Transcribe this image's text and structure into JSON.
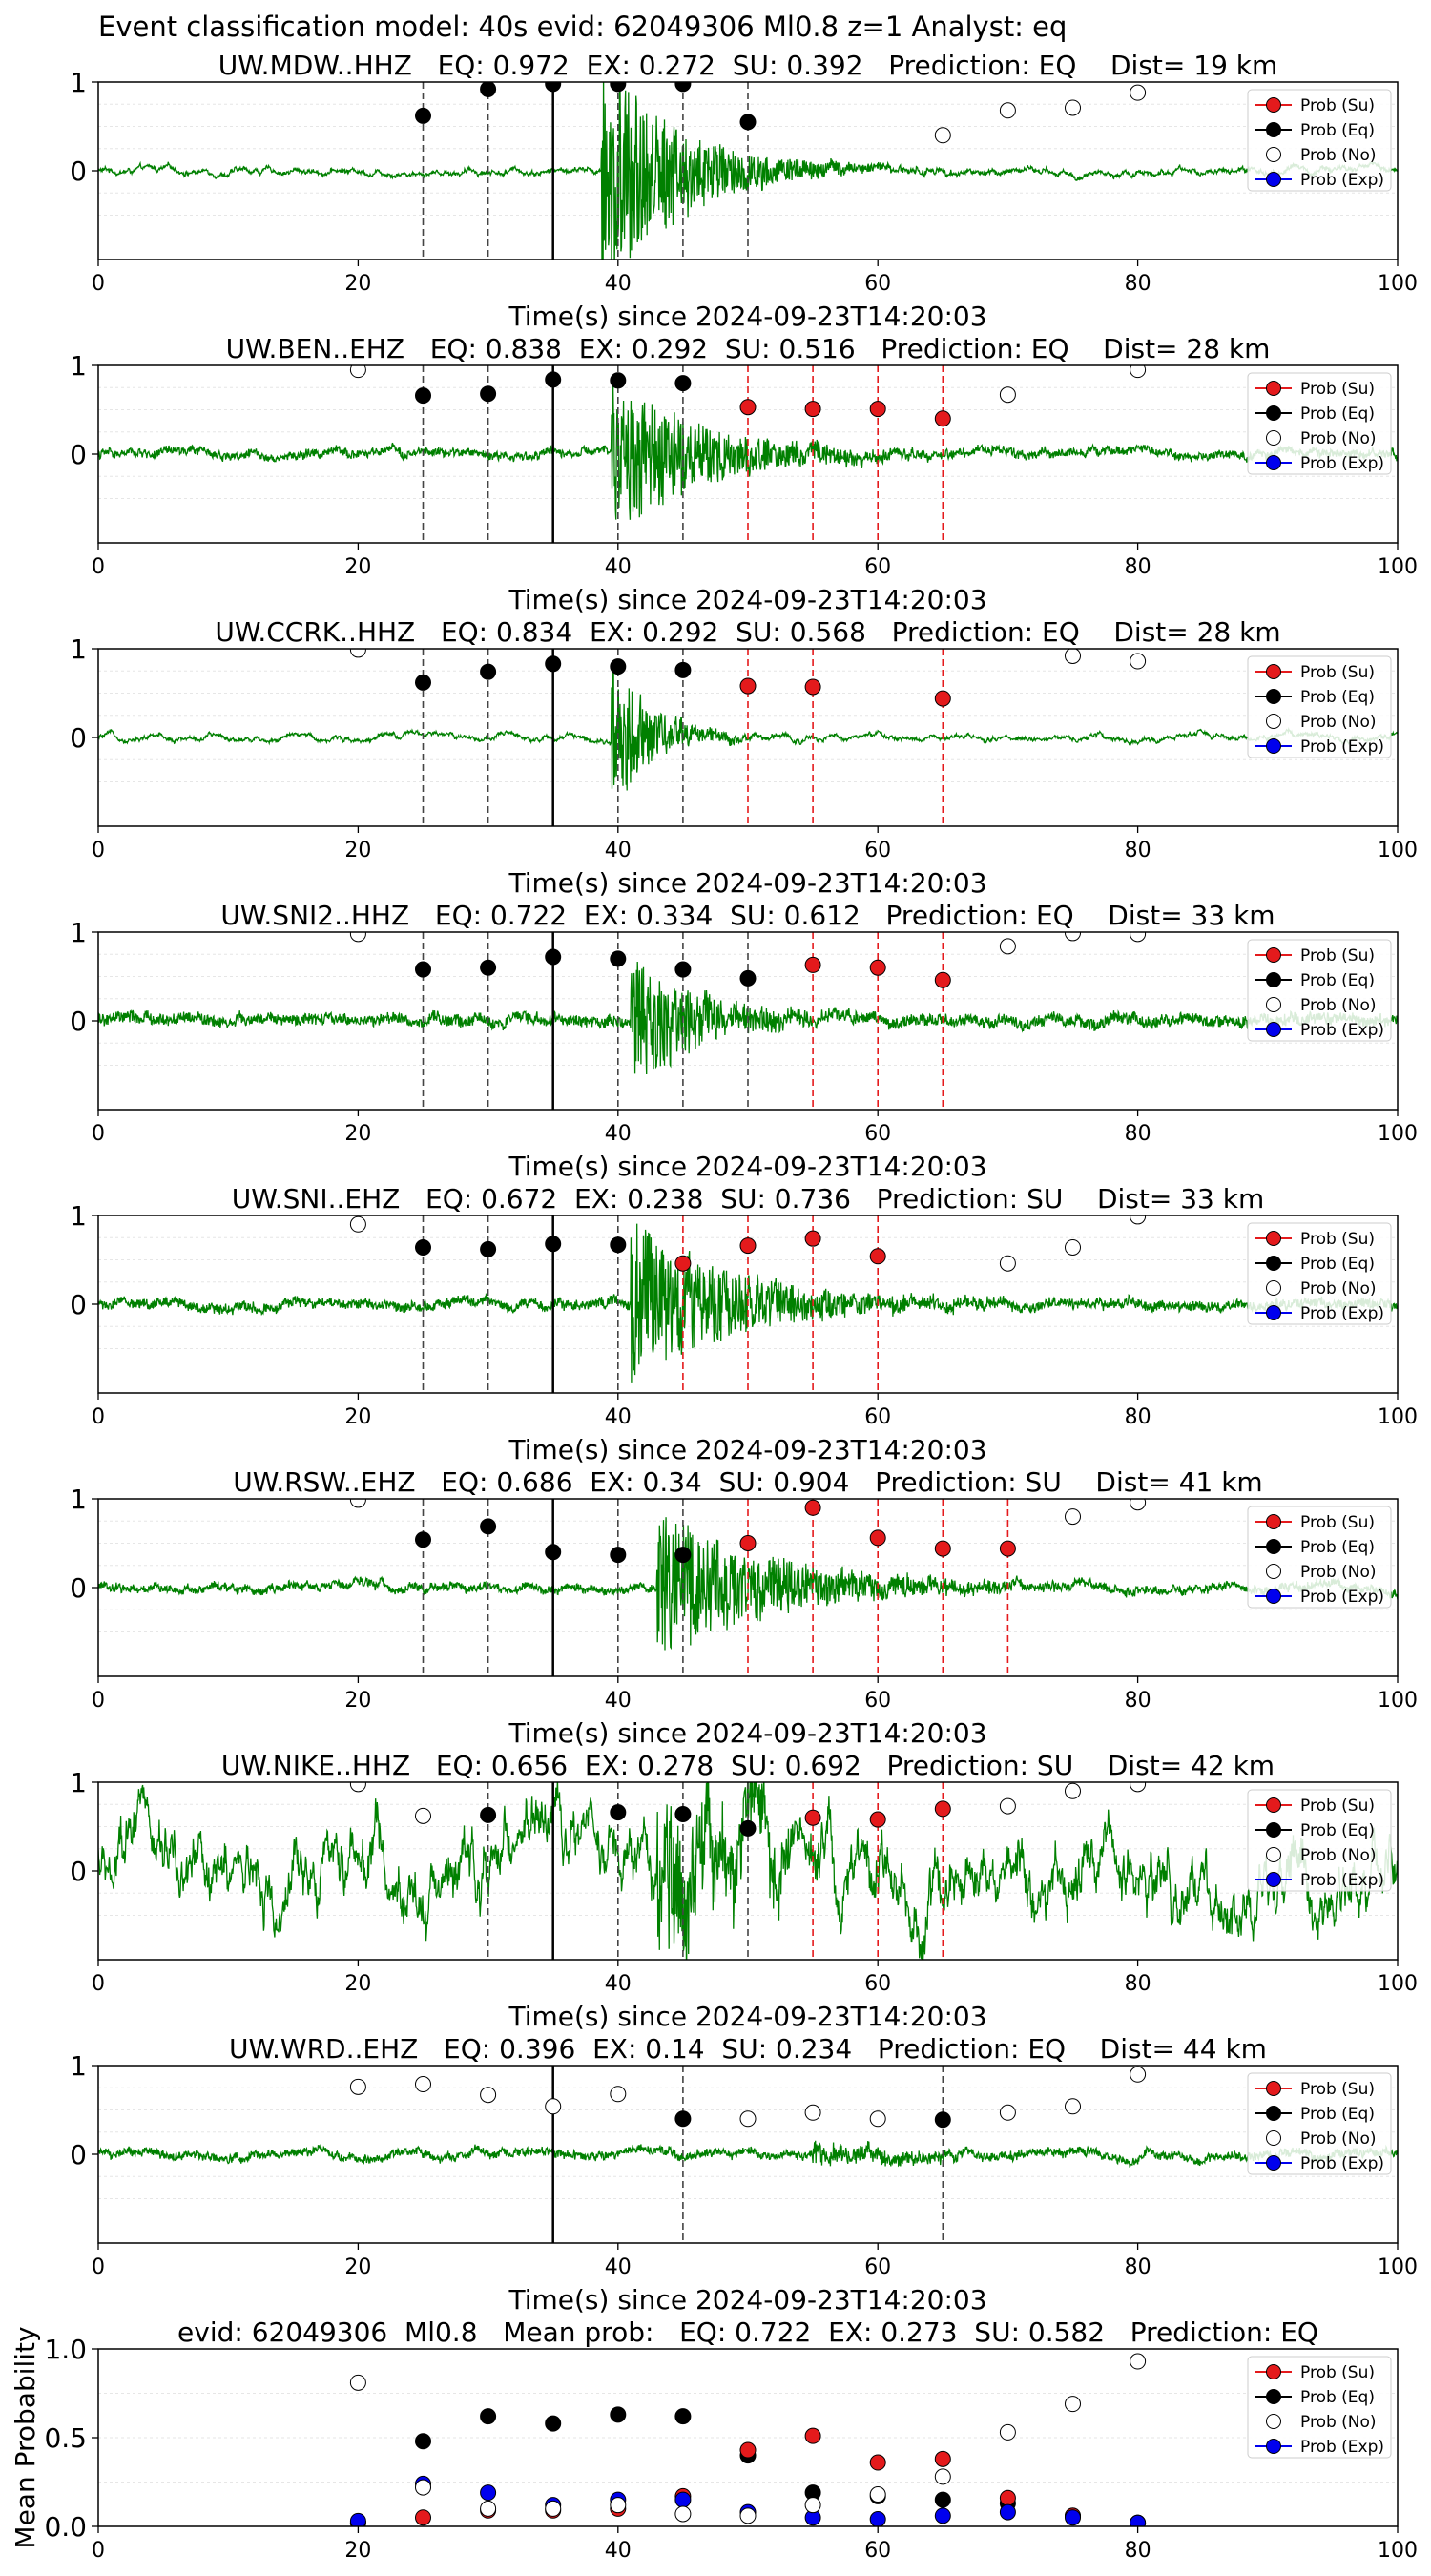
{
  "figure": {
    "suptitle": "Event classification model: 40s evid: 62049306 Ml0.8 z=1 Analyst: eq",
    "colors": {
      "wave": "#008000",
      "su": "#e41a1c",
      "eq": "#000000",
      "no": "#ffffff",
      "exp": "#0000ee",
      "eq_line": "#444444",
      "su_line": "#e41a1c"
    }
  },
  "legend": [
    "Prob (Su)",
    "Prob (Eq)",
    "Prob (No)",
    "Prob (Exp)"
  ],
  "chart_data": [
    {
      "type": "line+scatter",
      "title": "UW.MDW..HHZ   EQ: 0.972  EX: 0.272  SU: 0.392   Prediction: EQ    Dist= 19 km",
      "xlabel": "Time(s) since 2024-09-23T14:20:03",
      "xlim": [
        0,
        100
      ],
      "ylim": [
        -1,
        1
      ],
      "xticks": [
        "0",
        "20",
        "40",
        "60",
        "80",
        "100"
      ],
      "yticks": [
        "0",
        "1"
      ],
      "wave": {
        "noise": 0.015,
        "burst_start": 38.7,
        "burst_amp": 1.4,
        "burst_decay": 6
      },
      "arrival": 35,
      "eq_lines": [
        25,
        30,
        40,
        45,
        50
      ],
      "su_lines": [],
      "series": [
        {
          "name": "Prob (Eq)",
          "points": [
            [
              25,
              0.62
            ],
            [
              30,
              0.92
            ],
            [
              35,
              0.98
            ],
            [
              40,
              0.98
            ],
            [
              45,
              0.98
            ],
            [
              50,
              0.55
            ]
          ]
        },
        {
          "name": "Prob (No)",
          "points": [
            [
              65,
              0.4
            ],
            [
              70,
              0.68
            ],
            [
              75,
              0.71
            ],
            [
              80,
              0.88
            ]
          ]
        },
        {
          "name": "Prob (Su)",
          "points": []
        },
        {
          "name": "Prob (Exp)",
          "points": []
        }
      ]
    },
    {
      "type": "line+scatter",
      "title": "UW.BEN..EHZ   EQ: 0.838  EX: 0.292  SU: 0.516   Prediction: EQ    Dist= 28 km",
      "xlabel": "Time(s) since 2024-09-23T14:20:03",
      "xlim": [
        0,
        100
      ],
      "ylim": [
        -1,
        1
      ],
      "xticks": [
        "0",
        "20",
        "40",
        "60",
        "80",
        "100"
      ],
      "yticks": [
        "0",
        "1"
      ],
      "wave": {
        "noise": 0.04,
        "burst_start": 39.5,
        "burst_amp": 0.95,
        "burst_decay": 7
      },
      "arrival": 35,
      "eq_lines": [
        25,
        30,
        40,
        45
      ],
      "su_lines": [
        50,
        55,
        60,
        65
      ],
      "series": [
        {
          "name": "Prob (Eq)",
          "points": [
            [
              25,
              0.66
            ],
            [
              30,
              0.68
            ],
            [
              35,
              0.84
            ],
            [
              40,
              0.83
            ],
            [
              45,
              0.8
            ]
          ]
        },
        {
          "name": "Prob (Su)",
          "points": [
            [
              50,
              0.53
            ],
            [
              55,
              0.51
            ],
            [
              60,
              0.51
            ],
            [
              65,
              0.4
            ]
          ]
        },
        {
          "name": "Prob (No)",
          "points": [
            [
              20,
              0.95
            ],
            [
              70,
              0.67
            ],
            [
              80,
              0.95
            ]
          ]
        },
        {
          "name": "Prob (Exp)",
          "points": []
        }
      ]
    },
    {
      "type": "line+scatter",
      "title": "UW.CCRK..HHZ   EQ: 0.834  EX: 0.292  SU: 0.568   Prediction: EQ    Dist= 28 km",
      "xlabel": "Time(s) since 2024-09-23T14:20:03",
      "xlim": [
        0,
        100
      ],
      "ylim": [
        -1,
        1
      ],
      "xticks": [
        "0",
        "20",
        "40",
        "60",
        "80",
        "100"
      ],
      "yticks": [
        "0",
        "1"
      ],
      "wave": {
        "noise": 0.012,
        "burst_start": 39.5,
        "burst_amp": 0.9,
        "burst_decay": 3
      },
      "arrival": 35,
      "eq_lines": [
        25,
        30,
        40,
        45
      ],
      "su_lines": [
        50,
        55,
        65
      ],
      "series": [
        {
          "name": "Prob (Eq)",
          "points": [
            [
              25,
              0.62
            ],
            [
              30,
              0.74
            ],
            [
              35,
              0.83
            ],
            [
              40,
              0.8
            ],
            [
              45,
              0.76
            ]
          ]
        },
        {
          "name": "Prob (Su)",
          "points": [
            [
              50,
              0.58
            ],
            [
              55,
              0.57
            ],
            [
              65,
              0.44
            ]
          ]
        },
        {
          "name": "Prob (No)",
          "points": [
            [
              20,
              0.99
            ],
            [
              75,
              0.92
            ],
            [
              80,
              0.86
            ]
          ]
        },
        {
          "name": "Prob (Exp)",
          "points": []
        }
      ]
    },
    {
      "type": "line+scatter",
      "title": "UW.SNI2..HHZ   EQ: 0.722  EX: 0.334  SU: 0.612   Prediction: EQ    Dist= 33 km",
      "xlabel": "Time(s) since 2024-09-23T14:20:03",
      "xlim": [
        0,
        100
      ],
      "ylim": [
        -1,
        1
      ],
      "xticks": [
        "0",
        "20",
        "40",
        "60",
        "80",
        "100"
      ],
      "yticks": [
        "0",
        "1"
      ],
      "wave": {
        "noise": 0.06,
        "burst_start": 41,
        "burst_amp": 0.8,
        "burst_decay": 5
      },
      "arrival": 35,
      "eq_lines": [
        25,
        30,
        40,
        45,
        50
      ],
      "su_lines": [
        55,
        60,
        65
      ],
      "series": [
        {
          "name": "Prob (Eq)",
          "points": [
            [
              25,
              0.58
            ],
            [
              30,
              0.6
            ],
            [
              35,
              0.72
            ],
            [
              40,
              0.7
            ],
            [
              45,
              0.58
            ],
            [
              50,
              0.48
            ]
          ]
        },
        {
          "name": "Prob (Su)",
          "points": [
            [
              55,
              0.63
            ],
            [
              60,
              0.6
            ],
            [
              65,
              0.46
            ]
          ]
        },
        {
          "name": "Prob (No)",
          "points": [
            [
              20,
              0.98
            ],
            [
              70,
              0.84
            ],
            [
              75,
              0.99
            ],
            [
              80,
              0.98
            ]
          ]
        },
        {
          "name": "Prob (Exp)",
          "points": []
        }
      ]
    },
    {
      "type": "line+scatter",
      "title": "UW.SNI..EHZ   EQ: 0.672  EX: 0.238  SU: 0.736   Prediction: SU    Dist= 33 km",
      "xlabel": "Time(s) since 2024-09-23T14:20:03",
      "xlim": [
        0,
        100
      ],
      "ylim": [
        -1,
        1
      ],
      "xticks": [
        "0",
        "20",
        "40",
        "60",
        "80",
        "100"
      ],
      "yticks": [
        "0",
        "1"
      ],
      "wave": {
        "noise": 0.05,
        "burst_start": 41,
        "burst_amp": 0.95,
        "burst_decay": 8
      },
      "arrival": 35,
      "eq_lines": [
        25,
        30,
        40
      ],
      "su_lines": [
        45,
        50,
        55,
        60
      ],
      "series": [
        {
          "name": "Prob (Eq)",
          "points": [
            [
              25,
              0.64
            ],
            [
              30,
              0.62
            ],
            [
              35,
              0.68
            ],
            [
              40,
              0.67
            ]
          ]
        },
        {
          "name": "Prob (Su)",
          "points": [
            [
              45,
              0.46
            ],
            [
              50,
              0.66
            ],
            [
              55,
              0.74
            ],
            [
              60,
              0.54
            ]
          ]
        },
        {
          "name": "Prob (No)",
          "points": [
            [
              20,
              0.9
            ],
            [
              70,
              0.46
            ],
            [
              75,
              0.64
            ],
            [
              80,
              0.99
            ]
          ]
        },
        {
          "name": "Prob (Exp)",
          "points": []
        }
      ]
    },
    {
      "type": "line+scatter",
      "title": "UW.RSW..EHZ   EQ: 0.686  EX: 0.34  SU: 0.904   Prediction: SU    Dist= 41 km",
      "xlabel": "Time(s) since 2024-09-23T14:20:03",
      "xlim": [
        0,
        100
      ],
      "ylim": [
        -1,
        1
      ],
      "xticks": [
        "0",
        "20",
        "40",
        "60",
        "80",
        "100"
      ],
      "yticks": [
        "0",
        "1"
      ],
      "wave": {
        "noise": 0.04,
        "burst_start": 43,
        "burst_amp": 0.85,
        "burst_decay": 9
      },
      "arrival": 35,
      "eq_lines": [
        25,
        30,
        40,
        45
      ],
      "su_lines": [
        50,
        55,
        60,
        65,
        70
      ],
      "series": [
        {
          "name": "Prob (Eq)",
          "points": [
            [
              25,
              0.54
            ],
            [
              30,
              0.69
            ],
            [
              35,
              0.4
            ],
            [
              40,
              0.37
            ],
            [
              45,
              0.37
            ]
          ]
        },
        {
          "name": "Prob (Su)",
          "points": [
            [
              50,
              0.5
            ],
            [
              55,
              0.9
            ],
            [
              60,
              0.56
            ],
            [
              65,
              0.44
            ],
            [
              70,
              0.44
            ]
          ]
        },
        {
          "name": "Prob (No)",
          "points": [
            [
              20,
              0.99
            ],
            [
              75,
              0.8
            ],
            [
              80,
              0.96
            ]
          ]
        },
        {
          "name": "Prob (Exp)",
          "points": []
        }
      ]
    },
    {
      "type": "line+scatter",
      "title": "UW.NIKE..HHZ   EQ: 0.656  EX: 0.278  SU: 0.692   Prediction: SU    Dist= 42 km",
      "xlabel": "Time(s) since 2024-09-23T14:20:03",
      "xlim": [
        0,
        100
      ],
      "ylim": [
        -1,
        1
      ],
      "xticks": [
        "0",
        "20",
        "40",
        "60",
        "80",
        "100"
      ],
      "yticks": [
        "0",
        "1"
      ],
      "wave": {
        "noise": 0.1,
        "burst_start": 43,
        "burst_amp": 0.8,
        "burst_decay": 7
      },
      "arrival": 35,
      "eq_lines": [
        30,
        40,
        45,
        50
      ],
      "su_lines": [
        55,
        60,
        65
      ],
      "series": [
        {
          "name": "Prob (Eq)",
          "points": [
            [
              30,
              0.63
            ],
            [
              40,
              0.66
            ],
            [
              45,
              0.64
            ],
            [
              50,
              0.48
            ]
          ]
        },
        {
          "name": "Prob (Su)",
          "points": [
            [
              55,
              0.6
            ],
            [
              60,
              0.58
            ],
            [
              65,
              0.7
            ]
          ]
        },
        {
          "name": "Prob (No)",
          "points": [
            [
              20,
              0.98
            ],
            [
              25,
              0.62
            ],
            [
              70,
              0.73
            ],
            [
              75,
              0.9
            ],
            [
              80,
              0.98
            ]
          ]
        },
        {
          "name": "Prob (Exp)",
          "points": []
        }
      ]
    },
    {
      "type": "line+scatter",
      "title": "UW.WRD..EHZ   EQ: 0.396  EX: 0.14  SU: 0.234   Prediction: EQ    Dist= 44 km",
      "xlabel": "Time(s) since 2024-09-23T14:20:03",
      "xlim": [
        0,
        100
      ],
      "ylim": [
        -1,
        1
      ],
      "xticks": [
        "0",
        "20",
        "40",
        "60",
        "80",
        "100"
      ],
      "yticks": [
        "0",
        "1"
      ],
      "wave": {
        "noise": 0.04,
        "burst_start": 55,
        "burst_amp": 0.12,
        "burst_decay": 8
      },
      "arrival": 35,
      "eq_lines": [
        45,
        65
      ],
      "su_lines": [],
      "series": [
        {
          "name": "Prob (Eq)",
          "points": [
            [
              45,
              0.4
            ],
            [
              65,
              0.39
            ]
          ]
        },
        {
          "name": "Prob (No)",
          "points": [
            [
              20,
              0.76
            ],
            [
              25,
              0.79
            ],
            [
              30,
              0.67
            ],
            [
              35,
              0.54
            ],
            [
              40,
              0.68
            ],
            [
              50,
              0.4
            ],
            [
              55,
              0.47
            ],
            [
              60,
              0.4
            ],
            [
              70,
              0.47
            ],
            [
              75,
              0.54
            ],
            [
              80,
              0.9
            ]
          ]
        },
        {
          "name": "Prob (Su)",
          "points": []
        },
        {
          "name": "Prob (Exp)",
          "points": []
        }
      ]
    },
    {
      "type": "scatter",
      "title": "evid: 62049306  Ml0.8   Mean prob:   EQ: 0.722  EX: 0.273  SU: 0.582   Prediction: EQ",
      "xlabel": "",
      "ylabel": "Mean Probability",
      "xlim": [
        0,
        100
      ],
      "ylim": [
        0,
        1
      ],
      "xticks": [
        "0",
        "20",
        "40",
        "60",
        "80",
        "100"
      ],
      "yticks": [
        "0.0",
        "0.5",
        "1.0"
      ],
      "series": [
        {
          "name": "Prob (Eq)",
          "points": [
            [
              20,
              0.02
            ],
            [
              25,
              0.48
            ],
            [
              30,
              0.62
            ],
            [
              35,
              0.58
            ],
            [
              40,
              0.63
            ],
            [
              45,
              0.62
            ],
            [
              50,
              0.4
            ],
            [
              55,
              0.19
            ],
            [
              60,
              0.17
            ],
            [
              65,
              0.15
            ],
            [
              70,
              0.13
            ],
            [
              75,
              0.06
            ],
            [
              80,
              0.02
            ]
          ]
        },
        {
          "name": "Prob (Su)",
          "points": [
            [
              20,
              0.02
            ],
            [
              25,
              0.05
            ],
            [
              30,
              0.09
            ],
            [
              35,
              0.09
            ],
            [
              40,
              0.1
            ],
            [
              45,
              0.17
            ],
            [
              50,
              0.43
            ],
            [
              55,
              0.51
            ],
            [
              60,
              0.36
            ],
            [
              65,
              0.38
            ],
            [
              70,
              0.16
            ],
            [
              75,
              0.06
            ],
            [
              80,
              0.02
            ]
          ]
        },
        {
          "name": "Prob (Exp)",
          "points": [
            [
              20,
              0.03
            ],
            [
              25,
              0.24
            ],
            [
              30,
              0.19
            ],
            [
              35,
              0.12
            ],
            [
              40,
              0.15
            ],
            [
              45,
              0.15
            ],
            [
              50,
              0.08
            ],
            [
              55,
              0.05
            ],
            [
              60,
              0.04
            ],
            [
              65,
              0.06
            ],
            [
              70,
              0.08
            ],
            [
              75,
              0.05
            ],
            [
              80,
              0.02
            ]
          ]
        },
        {
          "name": "Prob (No)",
          "points": [
            [
              20,
              0.81
            ],
            [
              25,
              0.22
            ],
            [
              30,
              0.1
            ],
            [
              35,
              0.1
            ],
            [
              40,
              0.12
            ],
            [
              45,
              0.07
            ],
            [
              50,
              0.06
            ],
            [
              55,
              0.12
            ],
            [
              60,
              0.18
            ],
            [
              65,
              0.28
            ],
            [
              70,
              0.53
            ],
            [
              75,
              0.69
            ],
            [
              80,
              0.93
            ]
          ]
        }
      ]
    }
  ]
}
